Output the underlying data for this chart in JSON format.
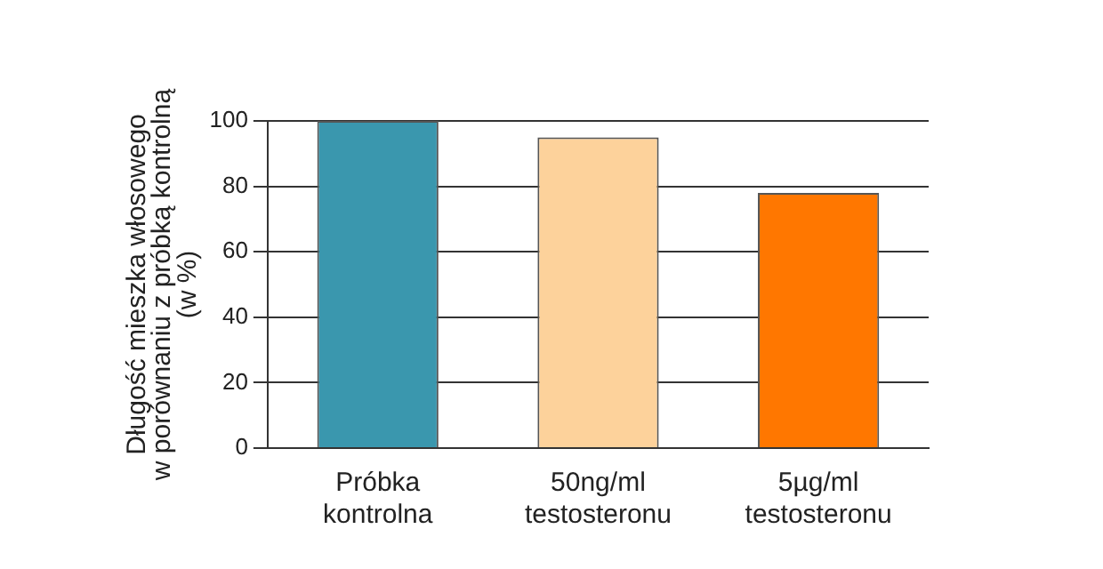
{
  "chart_data": {
    "type": "bar",
    "ylabel": "Długość mieszka włosowego\nw porównaniu z próbką kontrolną\n(w %)",
    "categories": [
      "Próbka\nkontrolna",
      "50ng/ml\ntestosteronu",
      "5µg/ml\ntestosteronu"
    ],
    "values": [
      100,
      95,
      78
    ],
    "colors": [
      "#3a97ae",
      "#fdd29b",
      "#ff7700"
    ],
    "ylim": [
      0,
      100
    ],
    "yticks": [
      0,
      20,
      40,
      60,
      80,
      100
    ],
    "grid": "y"
  }
}
